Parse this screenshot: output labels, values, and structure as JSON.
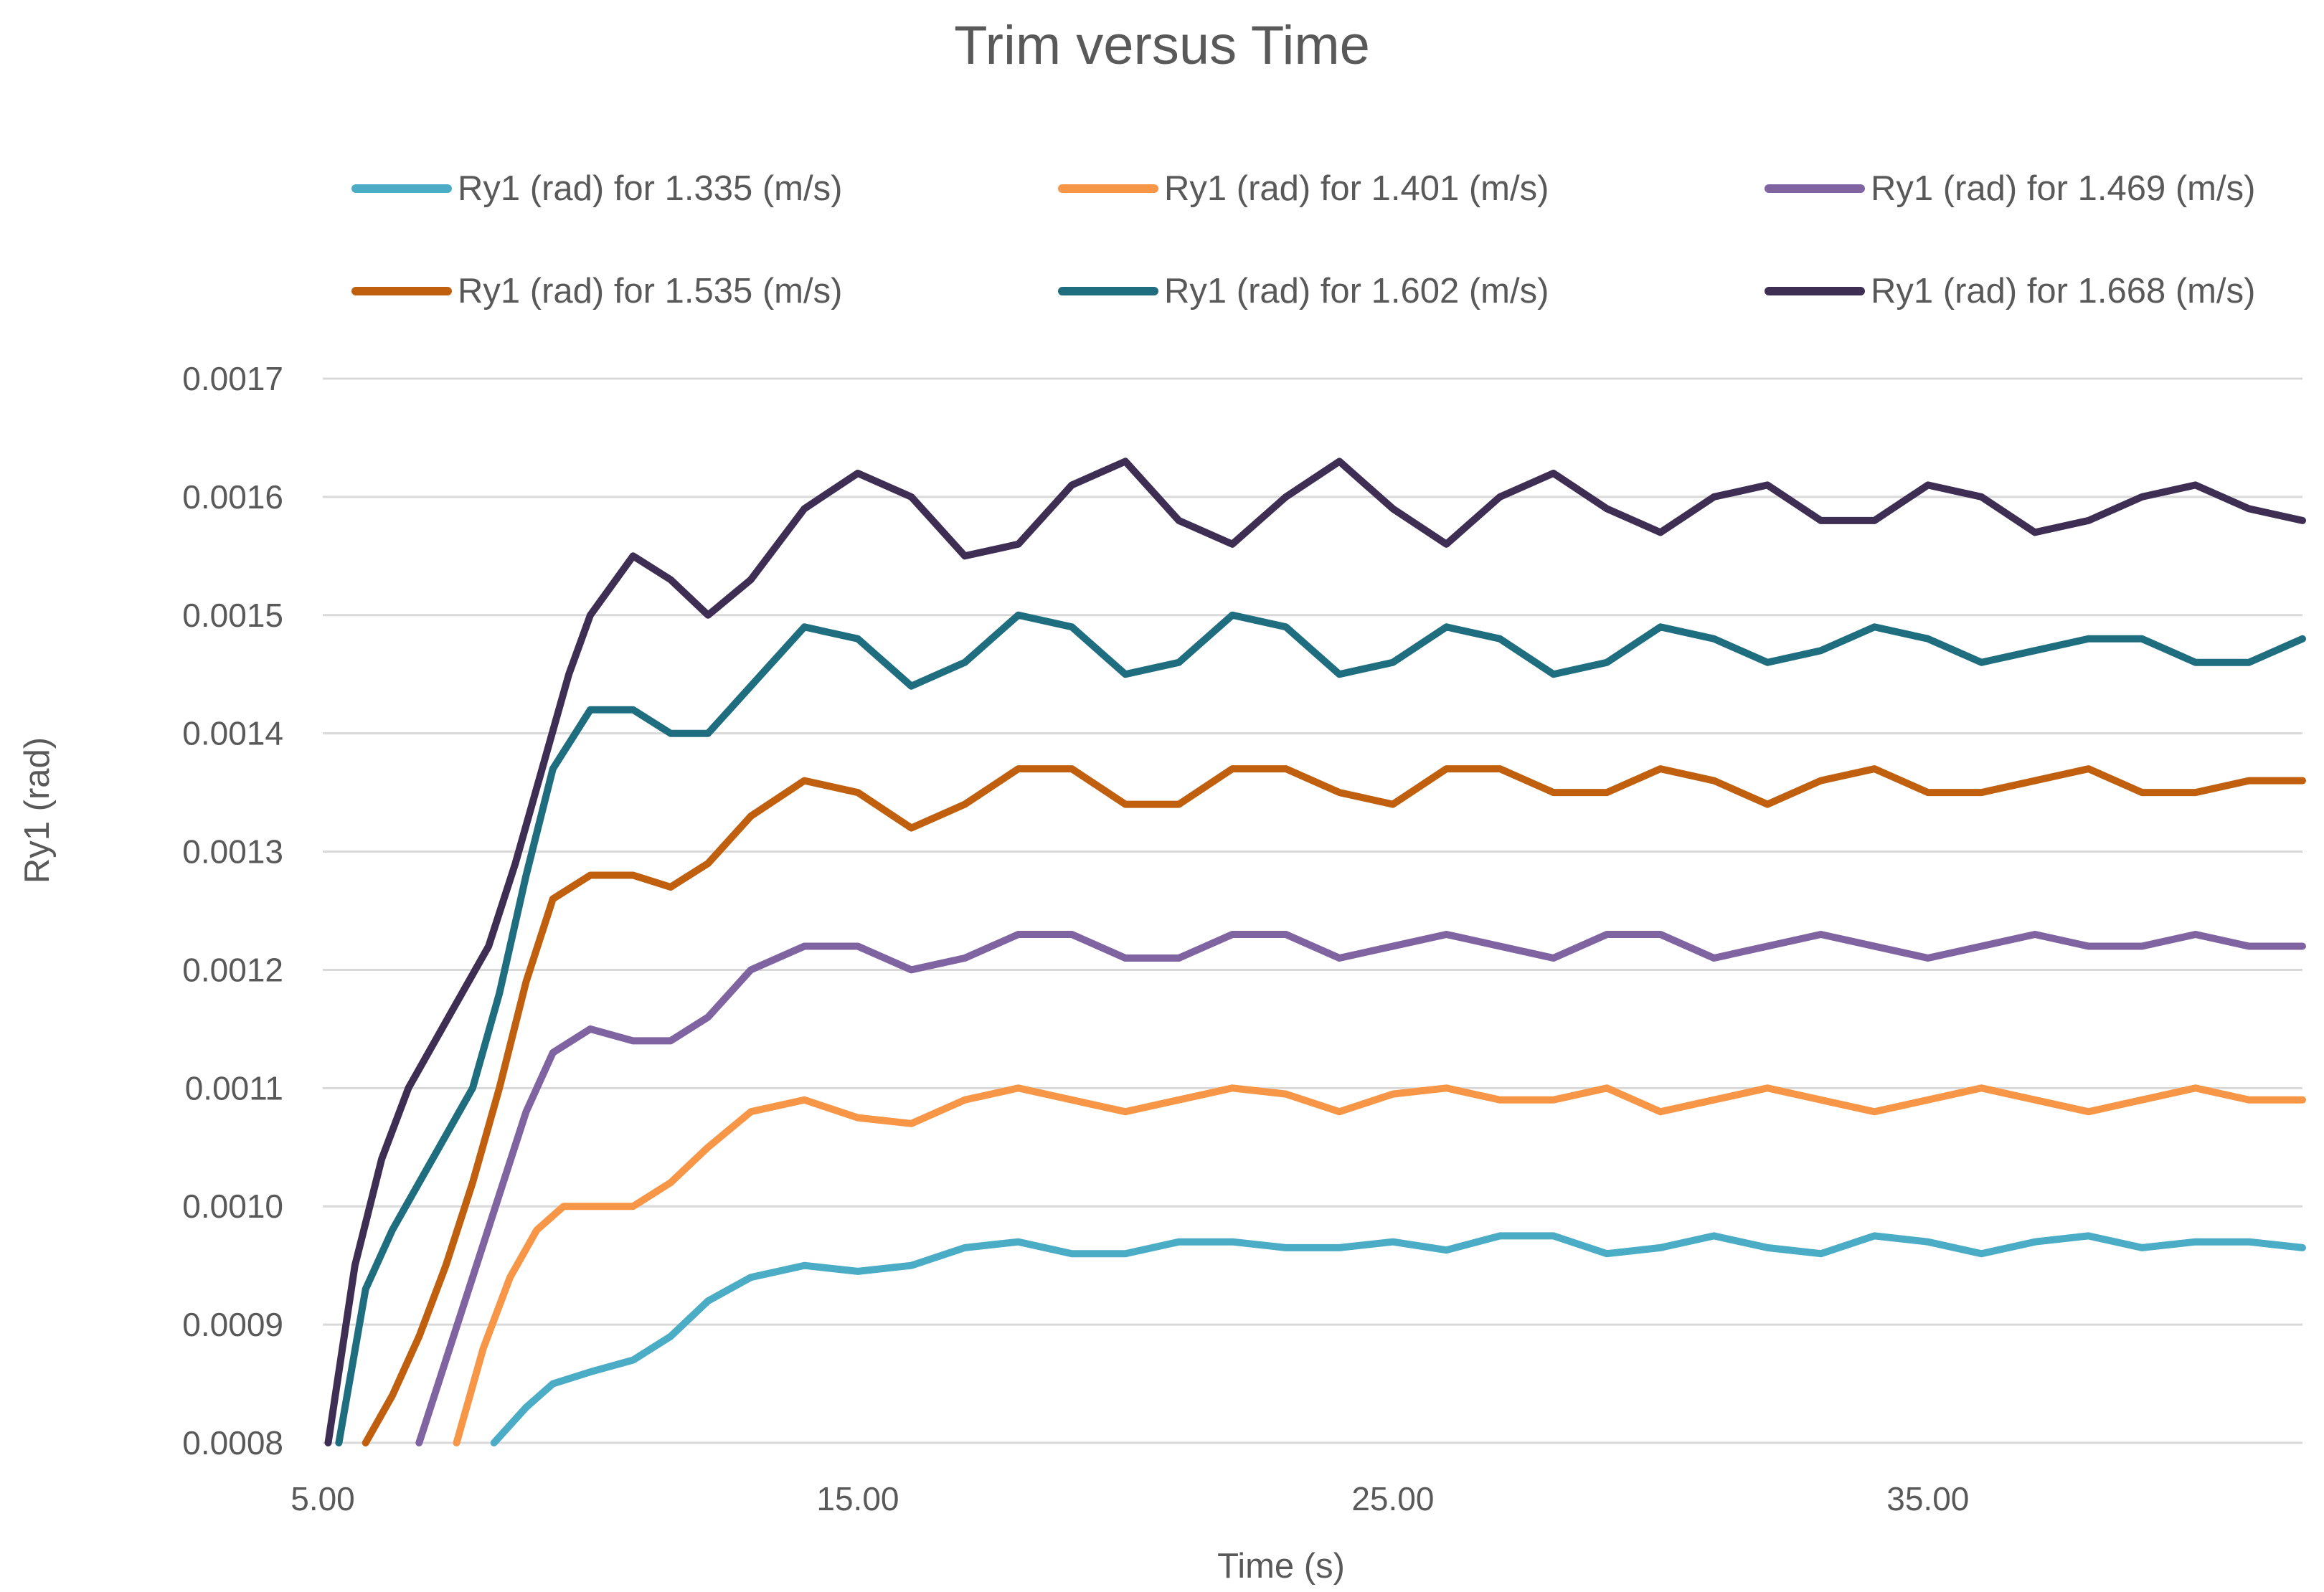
{
  "chart_data": {
    "type": "line",
    "title": "Trim versus Time",
    "xlabel": "Time (s)",
    "ylabel": "Ry1 (rad)",
    "xlim": [
      5.0,
      42.0
    ],
    "ylim": [
      0.0008,
      0.0017
    ],
    "x_ticks": [
      5.0,
      15.0,
      25.0,
      35.0
    ],
    "x_tick_labels": [
      "5.00",
      "15.00",
      "25.00",
      "35.00"
    ],
    "y_ticks": [
      0.0008,
      0.0009,
      0.001,
      0.0011,
      0.0012,
      0.0013,
      0.0014,
      0.0015,
      0.0016,
      0.0017
    ],
    "y_tick_labels": [
      "0.0008",
      "0.0009",
      "0.0010",
      "0.0011",
      "0.0012",
      "0.0013",
      "0.0014",
      "0.0015",
      "0.0016",
      "0.0017"
    ],
    "grid": "horizontal",
    "legend_position": "top",
    "series": [
      {
        "name": "Ry1 (rad) for 1.335 (m/s)",
        "color": "#4BACC6",
        "x": [
          8.2,
          8.8,
          9.3,
          10.0,
          10.8,
          11.5,
          12.2,
          13.0,
          14.0,
          15.0,
          16.0,
          17.0,
          18.0,
          19.0,
          20.0,
          21.0,
          22.0,
          23.0,
          24.0,
          25.0,
          26.0,
          27.0,
          28.0,
          29.0,
          30.0,
          31.0,
          32.0,
          33.0,
          34.0,
          35.0,
          36.0,
          37.0,
          38.0,
          39.0,
          40.0,
          41.0,
          42.0
        ],
        "values": [
          0.0008,
          0.00083,
          0.00085,
          0.00086,
          0.00087,
          0.00089,
          0.00092,
          0.00094,
          0.00095,
          0.000945,
          0.00095,
          0.000965,
          0.00097,
          0.00096,
          0.00096,
          0.00097,
          0.00097,
          0.000965,
          0.000965,
          0.00097,
          0.000963,
          0.000975,
          0.000975,
          0.00096,
          0.000965,
          0.000975,
          0.000965,
          0.00096,
          0.000975,
          0.00097,
          0.00096,
          0.00097,
          0.000975,
          0.000965,
          0.00097,
          0.00097,
          0.000965
        ]
      },
      {
        "name": "Ry1 (rad) for 1.401 (m/s)",
        "color": "#F79646",
        "x": [
          7.5,
          8.0,
          8.5,
          9.0,
          9.5,
          10.0,
          10.8,
          11.5,
          12.2,
          13.0,
          14.0,
          15.0,
          16.0,
          17.0,
          18.0,
          19.0,
          20.0,
          21.0,
          22.0,
          23.0,
          24.0,
          25.0,
          26.0,
          27.0,
          28.0,
          29.0,
          30.0,
          31.0,
          32.0,
          33.0,
          34.0,
          35.0,
          36.0,
          37.0,
          38.0,
          39.0,
          40.0,
          41.0,
          42.0
        ],
        "values": [
          0.0008,
          0.00088,
          0.00094,
          0.00098,
          0.001,
          0.001,
          0.001,
          0.00102,
          0.00105,
          0.00108,
          0.00109,
          0.001075,
          0.00107,
          0.00109,
          0.0011,
          0.00109,
          0.00108,
          0.00109,
          0.0011,
          0.001095,
          0.00108,
          0.001095,
          0.0011,
          0.00109,
          0.00109,
          0.0011,
          0.00108,
          0.00109,
          0.0011,
          0.00109,
          0.00108,
          0.00109,
          0.0011,
          0.00109,
          0.00108,
          0.00109,
          0.0011,
          0.00109,
          0.00109
        ]
      },
      {
        "name": "Ry1 (rad) for 1.469 (m/s)",
        "color": "#8064A2",
        "x": [
          6.8,
          7.3,
          7.8,
          8.3,
          8.8,
          9.3,
          10.0,
          10.8,
          11.5,
          12.2,
          13.0,
          14.0,
          15.0,
          16.0,
          17.0,
          18.0,
          19.0,
          20.0,
          21.0,
          22.0,
          23.0,
          24.0,
          25.0,
          26.0,
          27.0,
          28.0,
          29.0,
          30.0,
          31.0,
          32.0,
          33.0,
          34.0,
          35.0,
          36.0,
          37.0,
          38.0,
          39.0,
          40.0,
          41.0,
          42.0
        ],
        "values": [
          0.0008,
          0.00087,
          0.00094,
          0.00101,
          0.00108,
          0.00113,
          0.00115,
          0.00114,
          0.00114,
          0.00116,
          0.0012,
          0.00122,
          0.00122,
          0.0012,
          0.00121,
          0.00123,
          0.00123,
          0.00121,
          0.00121,
          0.00123,
          0.00123,
          0.00121,
          0.00122,
          0.00123,
          0.00122,
          0.00121,
          0.00123,
          0.00123,
          0.00121,
          0.00122,
          0.00123,
          0.00122,
          0.00121,
          0.00122,
          0.00123,
          0.00122,
          0.00122,
          0.00123,
          0.00122,
          0.00122
        ]
      },
      {
        "name": "Ry1 (rad) for 1.535 (m/s)",
        "color": "#C0600E",
        "x": [
          5.8,
          6.3,
          6.8,
          7.3,
          7.8,
          8.3,
          8.8,
          9.3,
          10.0,
          10.8,
          11.5,
          12.2,
          13.0,
          14.0,
          15.0,
          16.0,
          17.0,
          18.0,
          19.0,
          20.0,
          21.0,
          22.0,
          23.0,
          24.0,
          25.0,
          26.0,
          27.0,
          28.0,
          29.0,
          30.0,
          31.0,
          32.0,
          33.0,
          34.0,
          35.0,
          36.0,
          37.0,
          38.0,
          39.0,
          40.0,
          41.0,
          42.0
        ],
        "values": [
          0.0008,
          0.00084,
          0.00089,
          0.00095,
          0.00102,
          0.0011,
          0.00119,
          0.00126,
          0.00128,
          0.00128,
          0.00127,
          0.00129,
          0.00133,
          0.00136,
          0.00135,
          0.00132,
          0.00134,
          0.00137,
          0.00137,
          0.00134,
          0.00134,
          0.00137,
          0.00137,
          0.00135,
          0.00134,
          0.00137,
          0.00137,
          0.00135,
          0.00135,
          0.00137,
          0.00136,
          0.00134,
          0.00136,
          0.00137,
          0.00135,
          0.00135,
          0.00136,
          0.00137,
          0.00135,
          0.00135,
          0.00136,
          0.00136
        ]
      },
      {
        "name": "Ry1 (rad) for 1.602 (m/s)",
        "color": "#1F6E80",
        "x": [
          5.3,
          5.8,
          6.3,
          6.8,
          7.3,
          7.8,
          8.3,
          8.8,
          9.3,
          10.0,
          10.8,
          11.5,
          12.2,
          13.0,
          14.0,
          15.0,
          16.0,
          17.0,
          18.0,
          19.0,
          20.0,
          21.0,
          22.0,
          23.0,
          24.0,
          25.0,
          26.0,
          27.0,
          28.0,
          29.0,
          30.0,
          31.0,
          32.0,
          33.0,
          34.0,
          35.0,
          36.0,
          37.0,
          38.0,
          39.0,
          40.0,
          41.0,
          42.0
        ],
        "values": [
          0.0008,
          0.00093,
          0.00098,
          0.00102,
          0.00106,
          0.0011,
          0.00118,
          0.00128,
          0.00137,
          0.00142,
          0.00142,
          0.0014,
          0.0014,
          0.00144,
          0.00149,
          0.00148,
          0.00144,
          0.00146,
          0.0015,
          0.00149,
          0.00145,
          0.00146,
          0.0015,
          0.00149,
          0.00145,
          0.00146,
          0.00149,
          0.00148,
          0.00145,
          0.00146,
          0.00149,
          0.00148,
          0.00146,
          0.00147,
          0.00149,
          0.00148,
          0.00146,
          0.00147,
          0.00148,
          0.00148,
          0.00146,
          0.00146,
          0.00148
        ]
      },
      {
        "name": "Ry1 (rad) for 1.668 (m/s)",
        "color": "#3F2E54",
        "x": [
          5.1,
          5.6,
          6.1,
          6.6,
          7.1,
          7.6,
          8.1,
          8.6,
          9.1,
          9.6,
          10.0,
          10.8,
          11.5,
          12.2,
          13.0,
          14.0,
          15.0,
          16.0,
          17.0,
          18.0,
          19.0,
          20.0,
          21.0,
          22.0,
          23.0,
          24.0,
          25.0,
          26.0,
          27.0,
          28.0,
          29.0,
          30.0,
          31.0,
          32.0,
          33.0,
          34.0,
          35.0,
          36.0,
          37.0,
          38.0,
          39.0,
          40.0,
          41.0,
          42.0
        ],
        "values": [
          0.0008,
          0.00095,
          0.00104,
          0.0011,
          0.00114,
          0.00118,
          0.00122,
          0.00129,
          0.00137,
          0.00145,
          0.0015,
          0.00155,
          0.00153,
          0.0015,
          0.00153,
          0.00159,
          0.00162,
          0.0016,
          0.00155,
          0.00156,
          0.00161,
          0.00163,
          0.00158,
          0.00156,
          0.0016,
          0.00163,
          0.00159,
          0.00156,
          0.0016,
          0.00162,
          0.00159,
          0.00157,
          0.0016,
          0.00161,
          0.00158,
          0.00158,
          0.00161,
          0.0016,
          0.00157,
          0.00158,
          0.0016,
          0.00161,
          0.00159,
          0.00158
        ]
      }
    ]
  }
}
